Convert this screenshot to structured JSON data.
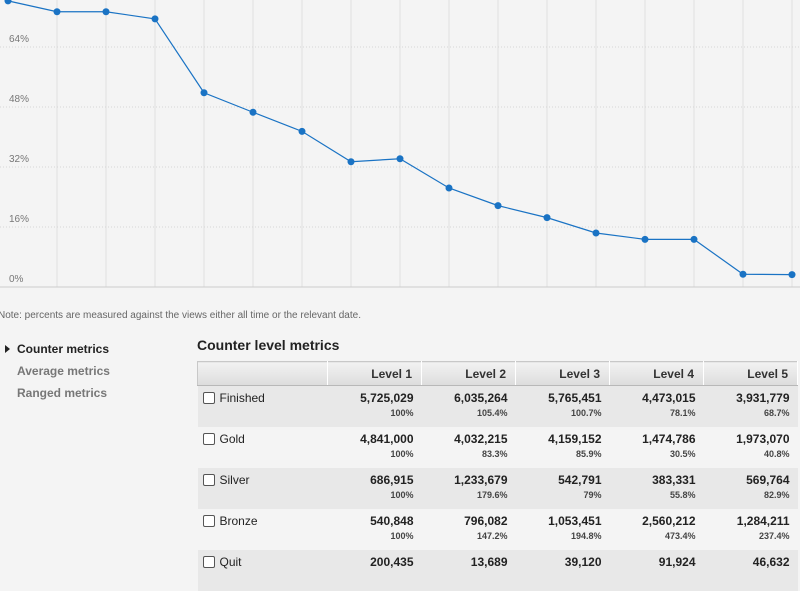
{
  "chart_data": {
    "type": "line",
    "x": [
      1,
      2,
      3,
      4,
      5,
      6,
      7,
      8,
      9,
      10,
      11,
      12,
      13,
      14,
      15,
      16,
      17
    ],
    "values": [
      76.3,
      73.4,
      73.4,
      71.5,
      51.8,
      46.6,
      41.5,
      33.4,
      34.2,
      26.4,
      21.7,
      18.5,
      14.4,
      12.7,
      12.7,
      3.4,
      3.3
    ],
    "ylim": [
      0,
      80
    ],
    "yticks": [
      "0%",
      "16%",
      "32%",
      "48%",
      "64%"
    ],
    "ytick_values": [
      0,
      16,
      32,
      48,
      64
    ],
    "grid": true,
    "line_color": "#1a73c4"
  },
  "note": "Note: percents are measured against the views either all time or the relevant date.",
  "sidebar": {
    "items": [
      {
        "label": "Counter metrics",
        "active": true
      },
      {
        "label": "Average metrics",
        "active": false
      },
      {
        "label": "Ranged metrics",
        "active": false
      }
    ]
  },
  "section": {
    "title": "Counter level metrics"
  },
  "table": {
    "columns": [
      "Level 1",
      "Level 2",
      "Level 3",
      "Level 4",
      "Level 5"
    ],
    "rows": [
      {
        "label": "Finished",
        "values": [
          "5,725,029",
          "6,035,264",
          "5,765,451",
          "4,473,015",
          "3,931,779"
        ],
        "percents": [
          "100%",
          "105.4%",
          "100.7%",
          "78.1%",
          "68.7%"
        ]
      },
      {
        "label": "Gold",
        "values": [
          "4,841,000",
          "4,032,215",
          "4,159,152",
          "1,474,786",
          "1,973,070"
        ],
        "percents": [
          "100%",
          "83.3%",
          "85.9%",
          "30.5%",
          "40.8%"
        ]
      },
      {
        "label": "Silver",
        "values": [
          "686,915",
          "1,233,679",
          "542,791",
          "383,331",
          "569,764"
        ],
        "percents": [
          "100%",
          "179.6%",
          "79%",
          "55.8%",
          "82.9%"
        ]
      },
      {
        "label": "Bronze",
        "values": [
          "540,848",
          "796,082",
          "1,053,451",
          "2,560,212",
          "1,284,211"
        ],
        "percents": [
          "100%",
          "147.2%",
          "194.8%",
          "473.4%",
          "237.4%"
        ]
      },
      {
        "label": "Quit",
        "values": [
          "200,435",
          "13,689",
          "39,120",
          "91,924",
          "46,632"
        ],
        "percents": [
          "",
          "",
          "",
          "",
          ""
        ]
      }
    ]
  }
}
